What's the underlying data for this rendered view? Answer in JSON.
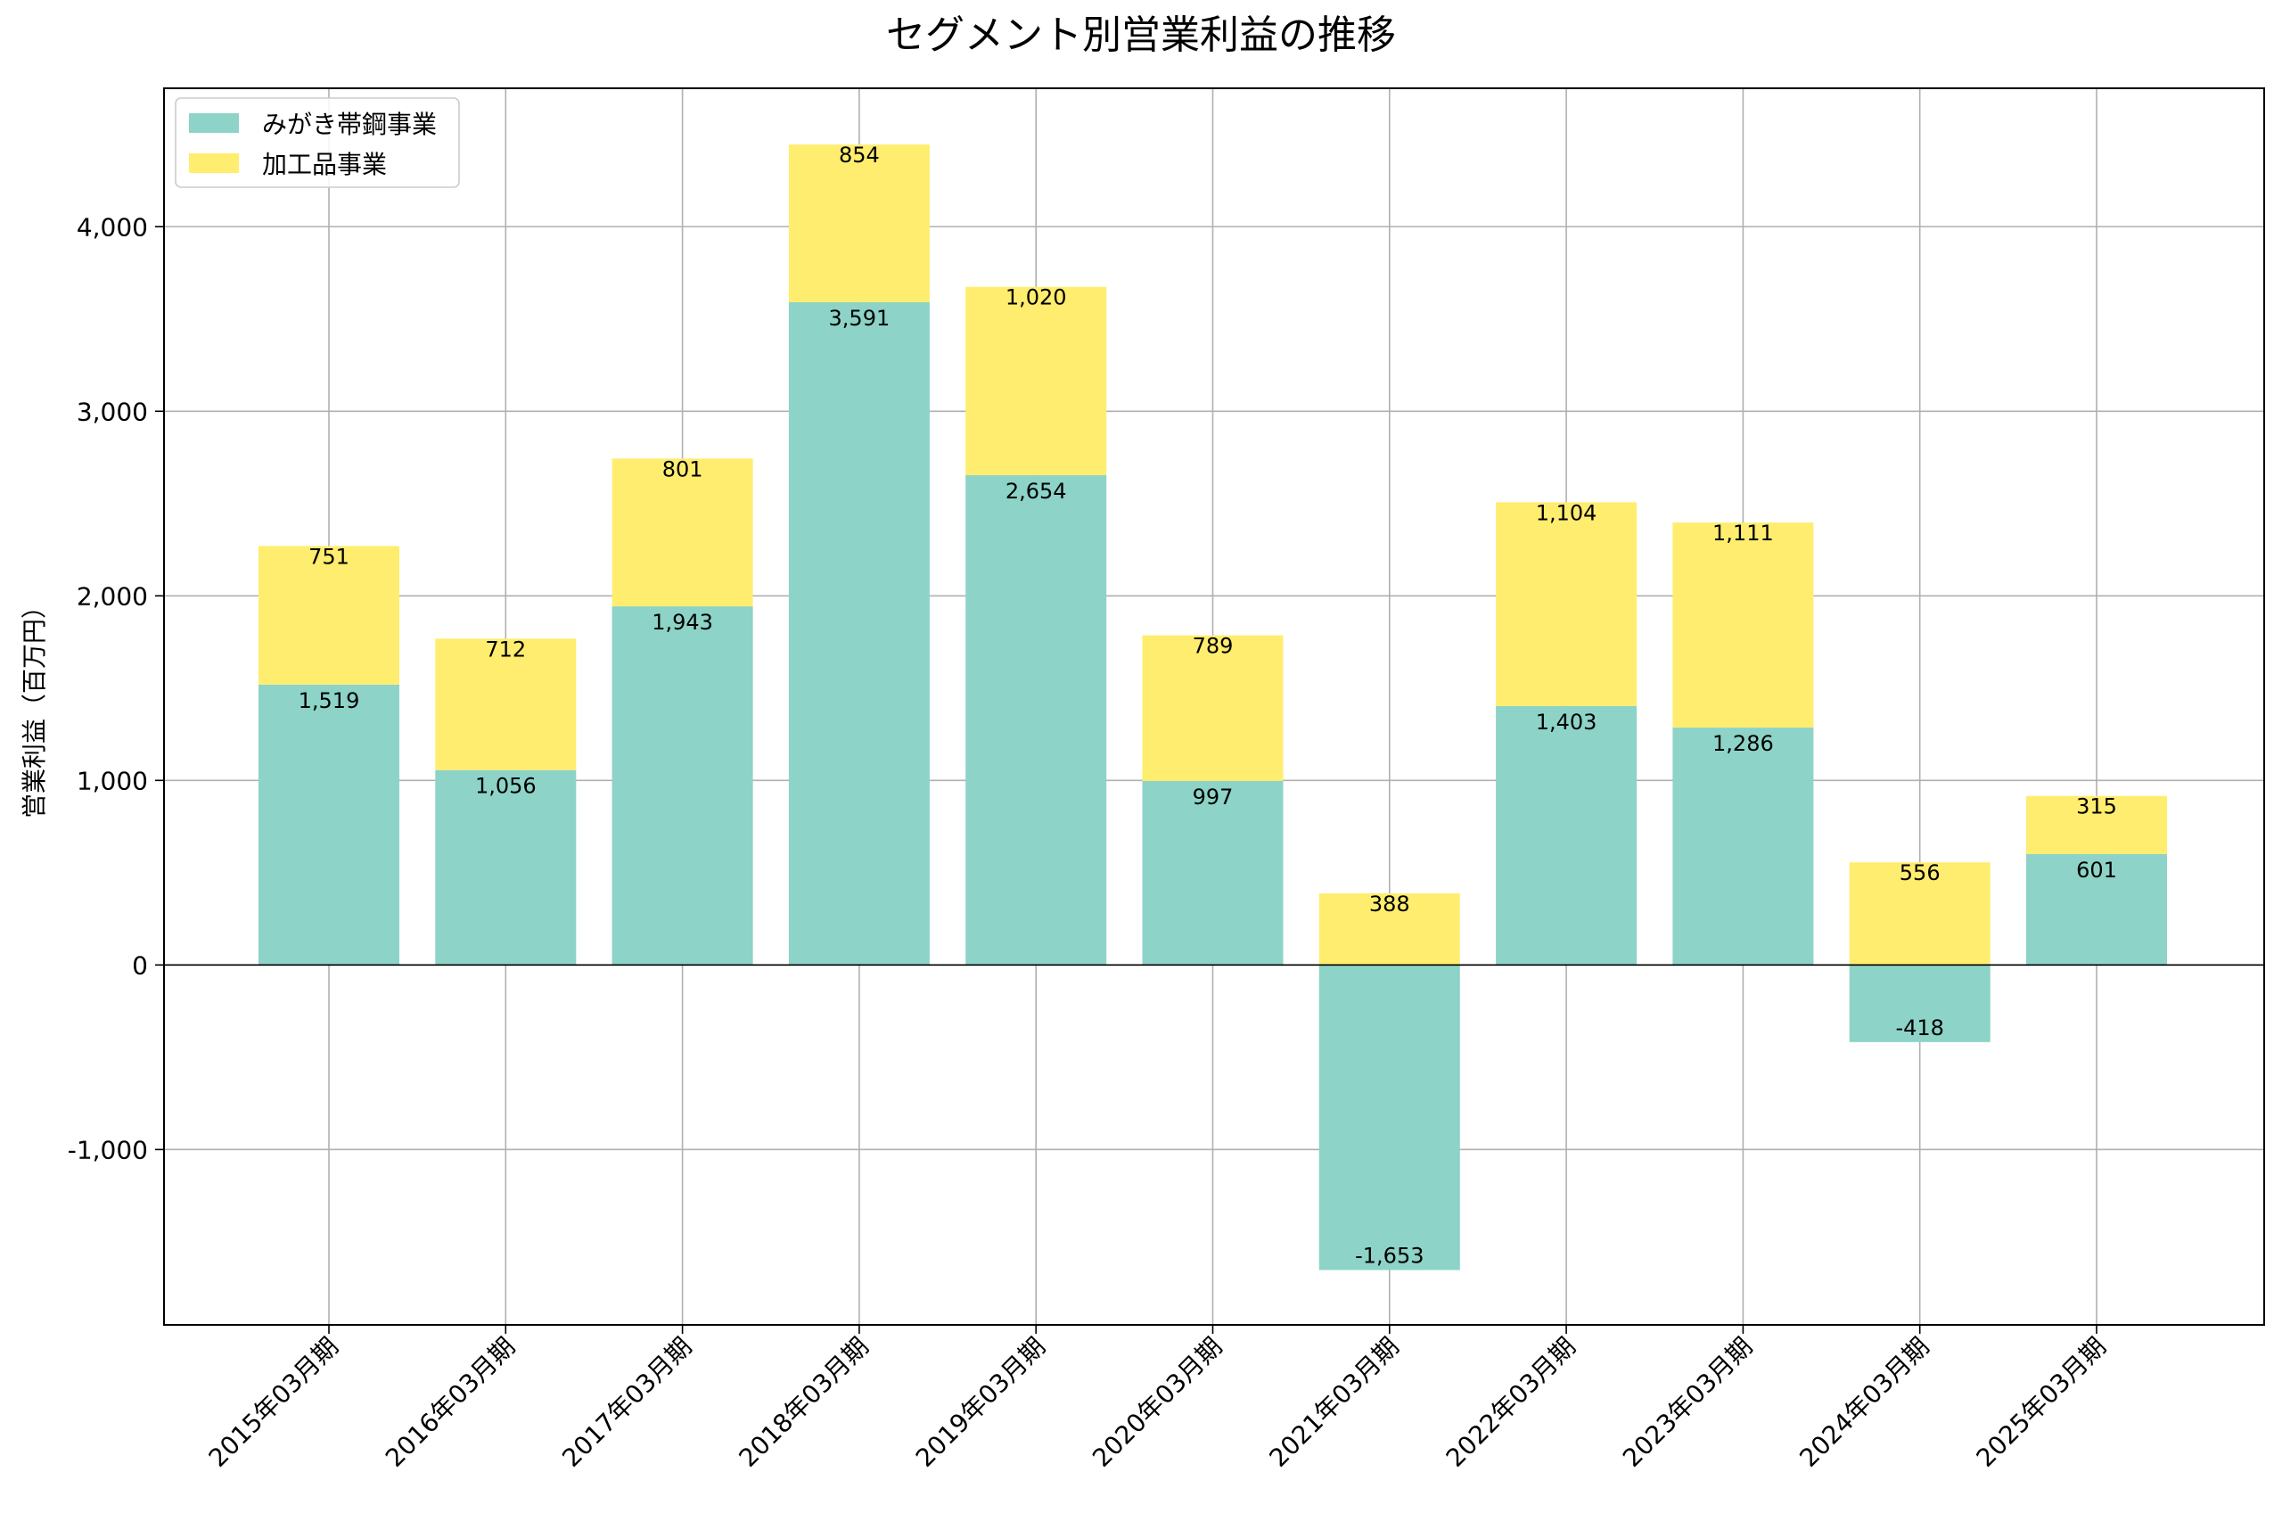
{
  "chart_data": {
    "type": "bar",
    "stacked": true,
    "title": "セグメント別営業利益の推移",
    "xlabel": "",
    "ylabel": "営業利益（百万円）",
    "ylim": [
      -1950,
      4750
    ],
    "yticks": [
      -1000,
      0,
      1000,
      2000,
      3000,
      4000
    ],
    "ytick_labels": [
      "-1,000",
      "0",
      "1,000",
      "2,000",
      "3,000",
      "4,000"
    ],
    "grid": true,
    "legend_position": "top-left",
    "categories": [
      "2015年03月期",
      "2016年03月期",
      "2017年03月期",
      "2018年03月期",
      "2019年03月期",
      "2020年03月期",
      "2021年03月期",
      "2022年03月期",
      "2023年03月期",
      "2024年03月期",
      "2025年03月期"
    ],
    "series": [
      {
        "name": "みがき帯鋼事業",
        "color": "#8dd3c7",
        "values": [
          1519,
          1056,
          1943,
          3591,
          2654,
          997,
          -1653,
          1403,
          1286,
          -418,
          601
        ],
        "labels": [
          "1,519",
          "1,056",
          "1,943",
          "3,591",
          "2,654",
          "997",
          "-1,653",
          "1,403",
          "1,286",
          "-418",
          "601"
        ]
      },
      {
        "name": "加工品事業",
        "color": "#ffed6f",
        "values": [
          751,
          712,
          801,
          854,
          1020,
          789,
          388,
          1104,
          1111,
          556,
          315
        ],
        "labels": [
          "751",
          "712",
          "801",
          "854",
          "1,020",
          "789",
          "388",
          "1,104",
          "1,111",
          "556",
          "315"
        ]
      }
    ]
  }
}
